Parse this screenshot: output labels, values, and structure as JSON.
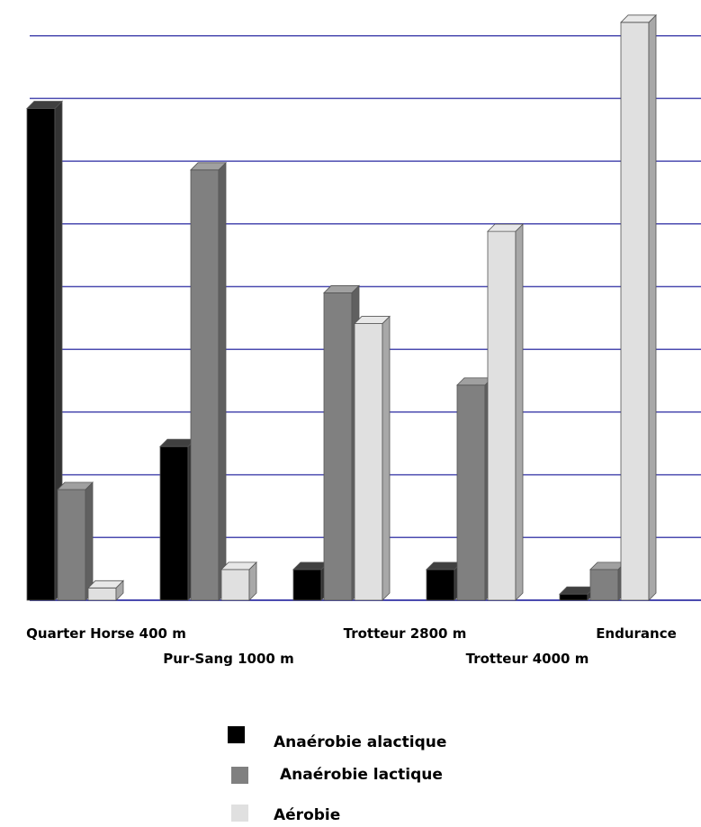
{
  "chart_data": {
    "type": "bar",
    "categories": [
      "Quarter Horse 400 m",
      "Pur-Sang 1000 m",
      "Trotteur  2800 m",
      "Trotteur 4000 m",
      "Endurance"
    ],
    "series": [
      {
        "name": "Anaérobie alactique",
        "values": [
          80,
          25,
          5,
          5,
          1
        ],
        "color": "#000000"
      },
      {
        "name": "Anaérobie lactique",
        "values": [
          18,
          70,
          50,
          35,
          5
        ],
        "color": "#808080"
      },
      {
        "name": "Aérobie",
        "values": [
          2,
          5,
          45,
          60,
          94
        ],
        "color": "#e0e0e0"
      }
    ],
    "ylim": [
      0,
      95
    ],
    "grid": true,
    "legend_position": "bottom-center",
    "title": "",
    "xlabel": "",
    "ylabel": ""
  }
}
